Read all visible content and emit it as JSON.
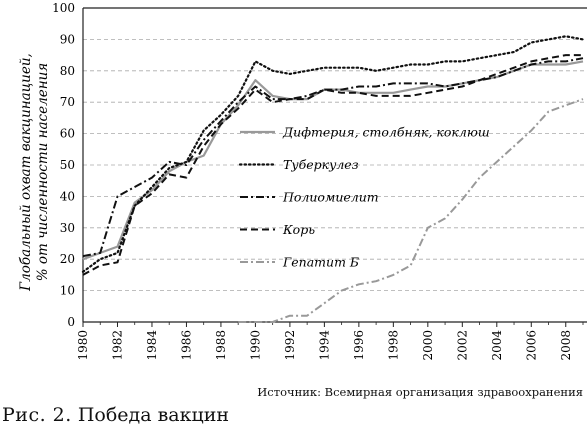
{
  "chart_data": {
    "type": "line",
    "ylabel_line1": "Глобальный охват вакцинацией,",
    "ylabel_line2": "% от численности населения",
    "ylim": [
      0,
      100
    ],
    "yticks": [
      0,
      10,
      20,
      30,
      40,
      50,
      60,
      70,
      80,
      90,
      100
    ],
    "xlim": [
      1980,
      2009
    ],
    "xticks": [
      1980,
      1982,
      1984,
      1986,
      1988,
      1990,
      1992,
      1994,
      1996,
      1998,
      2000,
      2002,
      2004,
      2006,
      2008
    ],
    "grid": "horizontal dashed",
    "legend_position": "center-right",
    "series": [
      {
        "name": "Дифтерия, столбняк, коклюш",
        "color": "#999999",
        "style": "solid",
        "x": [
          1980,
          1981,
          1982,
          1983,
          1984,
          1985,
          1986,
          1987,
          1988,
          1989,
          1990,
          1991,
          1992,
          1993,
          1994,
          1995,
          1996,
          1997,
          1998,
          1999,
          2000,
          2001,
          2002,
          2003,
          2004,
          2005,
          2006,
          2007,
          2008,
          2009
        ],
        "values": [
          20,
          22,
          24,
          38,
          42,
          48,
          51,
          53,
          63,
          69,
          77,
          72,
          71,
          71,
          74,
          74,
          73,
          73,
          73,
          74,
          75,
          75,
          76,
          77,
          78,
          80,
          82,
          82,
          82,
          83
        ]
      },
      {
        "name": "Туберкулез",
        "color": "#111111",
        "style": "dotted",
        "x": [
          1980,
          1981,
          1982,
          1983,
          1984,
          1985,
          1986,
          1987,
          1988,
          1989,
          1990,
          1991,
          1992,
          1993,
          1994,
          1995,
          1996,
          1997,
          1998,
          1999,
          2000,
          2001,
          2002,
          2003,
          2004,
          2005,
          2006,
          2007,
          2008,
          2009
        ],
        "values": [
          16,
          20,
          22,
          37,
          43,
          49,
          51,
          61,
          66,
          72,
          83,
          80,
          79,
          80,
          81,
          81,
          81,
          80,
          81,
          82,
          82,
          83,
          83,
          84,
          85,
          86,
          89,
          90,
          91,
          90
        ]
      },
      {
        "name": "Полиомиелит",
        "color": "#111111",
        "style": "dashdot",
        "x": [
          1980,
          1981,
          1982,
          1983,
          1984,
          1985,
          1986,
          1987,
          1988,
          1989,
          1990,
          1991,
          1992,
          1993,
          1994,
          1995,
          1996,
          1997,
          1998,
          1999,
          2000,
          2001,
          2002,
          2003,
          2004,
          2005,
          2006,
          2007,
          2008,
          2009
        ],
        "values": [
          21,
          22,
          40,
          43,
          46,
          51,
          50,
          58,
          64,
          70,
          75,
          71,
          71,
          72,
          74,
          74,
          75,
          75,
          76,
          76,
          76,
          75,
          76,
          77,
          78,
          80,
          82,
          83,
          83,
          84
        ]
      },
      {
        "name": "Корь",
        "color": "#111111",
        "style": "dashed",
        "x": [
          1980,
          1981,
          1982,
          1983,
          1984,
          1985,
          1986,
          1987,
          1988,
          1989,
          1990,
          1991,
          1992,
          1993,
          1994,
          1995,
          1996,
          1997,
          1998,
          1999,
          2000,
          2001,
          2002,
          2003,
          2004,
          2005,
          2006,
          2007,
          2008,
          2009
        ],
        "values": [
          15,
          18,
          19,
          37,
          41,
          47,
          46,
          56,
          63,
          68,
          74,
          70,
          71,
          71,
          74,
          73,
          73,
          72,
          72,
          72,
          73,
          74,
          75,
          77,
          79,
          81,
          83,
          84,
          85,
          85
        ]
      },
      {
        "name": "Гепатит Б",
        "color": "#999999",
        "style": "dashdot",
        "x": [
          1989,
          1990,
          1991,
          1992,
          1993,
          1994,
          1995,
          1996,
          1997,
          1998,
          1999,
          2000,
          2001,
          2002,
          2003,
          2004,
          2005,
          2006,
          2007,
          2008,
          2009
        ],
        "values": [
          0,
          0,
          0,
          2,
          2,
          6,
          10,
          12,
          13,
          15,
          18,
          30,
          33,
          39,
          46,
          51,
          56,
          61,
          67,
          69,
          71
        ]
      }
    ]
  },
  "source": "Источник: Всемирная организация здравоохранения",
  "caption": {
    "label": "Рис. 2.",
    "text": "Победа вакцин"
  }
}
